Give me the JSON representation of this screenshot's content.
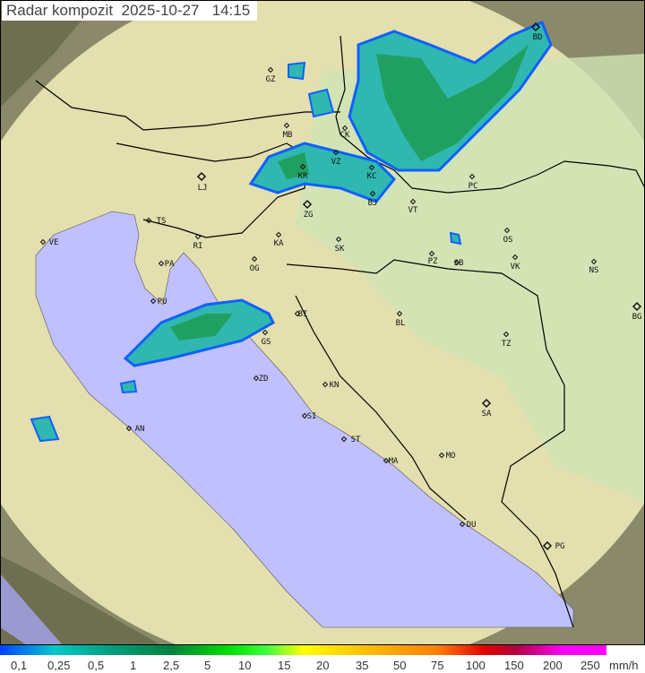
{
  "header": {
    "title": "Radar kompozit  2025-10-27   14:15"
  },
  "colors": {
    "sea": "#c0c0ff",
    "land": "#d9e6b8",
    "border": "#000000",
    "radar_low": "#30c0c0",
    "radar_mid": "#20a060",
    "radar_edge": "#1060ff"
  },
  "cities": [
    "BD",
    "GZ",
    "MB",
    "CK",
    "LJ",
    "KR",
    "VZ",
    "KC",
    "PC",
    "TS",
    "ZG",
    "BJ",
    "VT",
    "VE",
    "RI",
    "KA",
    "SK",
    "OS",
    "PA",
    "OG",
    "PZ",
    "SB",
    "VK",
    "NS",
    "PU",
    "BI",
    "BL",
    "BG",
    "GS",
    "TZ",
    "ZD",
    "KN",
    "SA",
    "SI",
    "AN",
    "ST",
    "MA",
    "MO",
    "DU",
    "PG"
  ],
  "legend": {
    "labels": [
      "0,1",
      "0,25",
      "0,5",
      "1",
      "2,5",
      "5",
      "10",
      "15",
      "20",
      "35",
      "50",
      "75",
      "100",
      "150",
      "200",
      "250"
    ],
    "unit": "mm/h"
  }
}
